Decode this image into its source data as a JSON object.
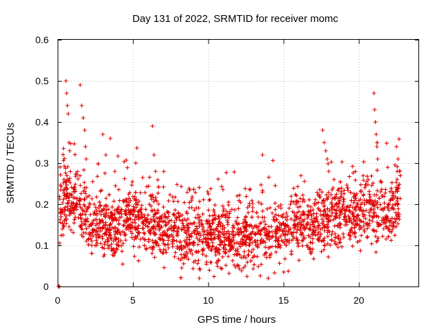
{
  "colors": {
    "series": "#e00000",
    "grid": "#a0a0a0",
    "axis": "#000000"
  },
  "chart_data": {
    "type": "scatter",
    "title": "Day 131 of 2022, SRMTID for receiver momc",
    "xlabel": "GPS time / hours",
    "ylabel": "SRMTID / TECUs",
    "xlim": [
      0,
      24
    ],
    "ylim": [
      0,
      0.6
    ],
    "xticks": [
      0,
      5,
      10,
      15,
      20
    ],
    "xtick_labels": [
      "0",
      "5",
      "10",
      "15",
      "20"
    ],
    "yticks": [
      0,
      0.1,
      0.2,
      0.3,
      0.4,
      0.5,
      0.6
    ],
    "ytick_labels": [
      "0",
      "0.1",
      "0.2",
      "0.3",
      "0.4",
      "0.5",
      "0.6"
    ],
    "grid": true,
    "marker": "+",
    "series": [
      {
        "name": "SRMTID",
        "trend": [
          [
            0.0,
            0.17
          ],
          [
            0.5,
            0.22
          ],
          [
            1.0,
            0.2
          ],
          [
            1.5,
            0.21
          ],
          [
            2.0,
            0.16
          ],
          [
            3.0,
            0.15
          ],
          [
            4.0,
            0.15
          ],
          [
            5.0,
            0.17
          ],
          [
            6.0,
            0.16
          ],
          [
            7.0,
            0.14
          ],
          [
            8.0,
            0.13
          ],
          [
            9.0,
            0.13
          ],
          [
            10.0,
            0.12
          ],
          [
            11.0,
            0.12
          ],
          [
            12.0,
            0.12
          ],
          [
            13.0,
            0.12
          ],
          [
            14.0,
            0.13
          ],
          [
            15.0,
            0.14
          ],
          [
            16.0,
            0.15
          ],
          [
            17.0,
            0.15
          ],
          [
            18.0,
            0.17
          ],
          [
            19.0,
            0.17
          ],
          [
            20.0,
            0.18
          ],
          [
            21.0,
            0.18
          ],
          [
            22.0,
            0.17
          ],
          [
            22.8,
            0.22
          ]
        ],
        "spikes": [
          [
            0.55,
            0.5
          ],
          [
            0.6,
            0.47
          ],
          [
            0.65,
            0.44
          ],
          [
            0.7,
            0.42
          ],
          [
            0.75,
            0.35
          ],
          [
            0.8,
            0.33
          ],
          [
            1.5,
            0.49
          ],
          [
            1.6,
            0.44
          ],
          [
            1.7,
            0.41
          ],
          [
            1.8,
            0.38
          ],
          [
            1.85,
            0.34
          ],
          [
            1.9,
            0.31
          ],
          [
            3.0,
            0.37
          ],
          [
            3.2,
            0.32
          ],
          [
            3.5,
            0.36
          ],
          [
            3.8,
            0.28
          ],
          [
            6.3,
            0.39
          ],
          [
            6.4,
            0.32
          ],
          [
            6.5,
            0.28
          ],
          [
            13.6,
            0.32
          ],
          [
            17.6,
            0.38
          ],
          [
            17.7,
            0.35
          ],
          [
            17.8,
            0.33
          ],
          [
            17.9,
            0.31
          ],
          [
            18.0,
            0.28
          ],
          [
            21.0,
            0.47
          ],
          [
            21.05,
            0.43
          ],
          [
            21.1,
            0.4
          ],
          [
            21.15,
            0.37
          ],
          [
            21.2,
            0.34
          ],
          [
            21.25,
            0.31
          ],
          [
            22.5,
            0.34
          ],
          [
            22.6,
            0.31
          ],
          [
            22.7,
            0.28
          ],
          [
            0.05,
            0.0
          ],
          [
            0.1,
            0.0
          ],
          [
            0.12,
            0.0
          ]
        ]
      }
    ]
  }
}
